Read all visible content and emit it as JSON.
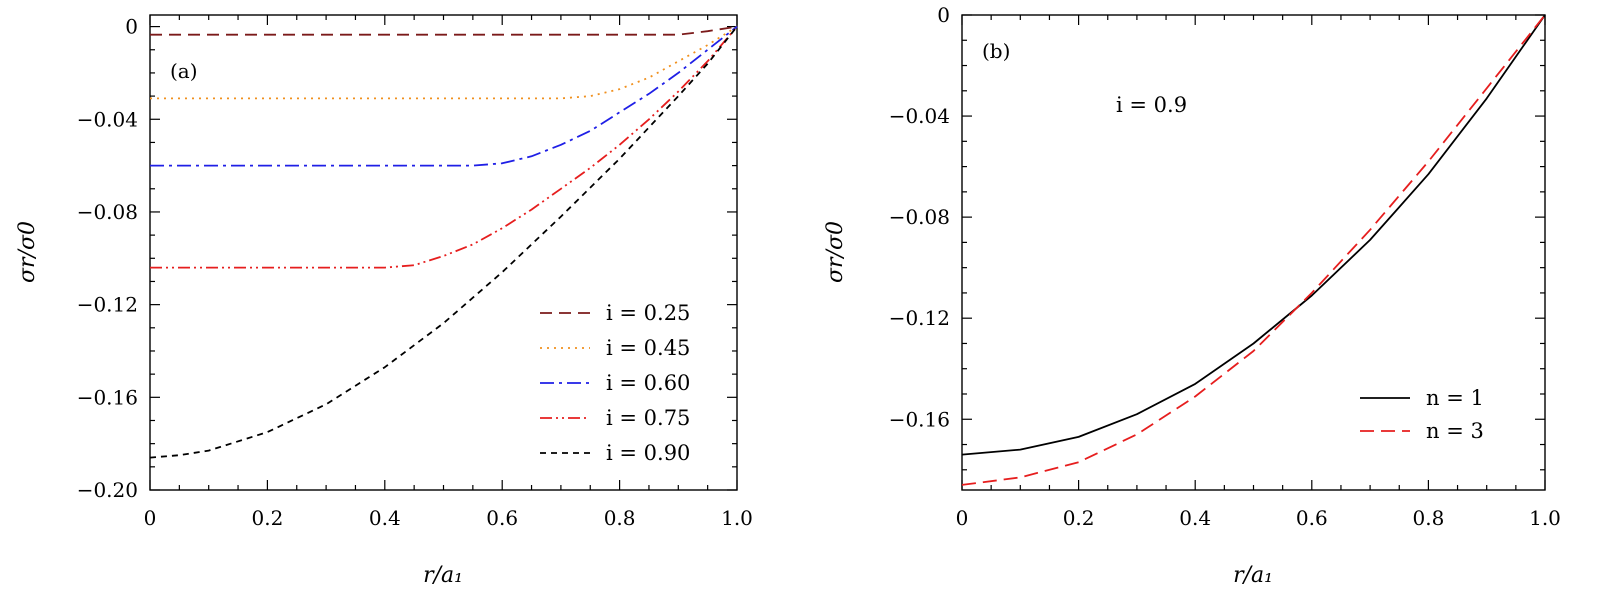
{
  "chart_data": [
    {
      "type": "line",
      "panel_label": "(a)",
      "xlabel": "r/a₁",
      "ylabel": "σr/σ0",
      "xlim": [
        0,
        1.0
      ],
      "ylim": [
        -0.2,
        0.005
      ],
      "xticks": [
        0,
        0.2,
        0.4,
        0.6,
        0.8,
        1.0
      ],
      "xtick_labels": [
        "0",
        "0.2",
        "0.4",
        "0.6",
        "0.8",
        "1.0"
      ],
      "yticks": [
        0,
        -0.04,
        -0.08,
        -0.12,
        -0.16,
        -0.2
      ],
      "ytick_labels": [
        "0",
        "−0.04",
        "−0.08",
        "−0.12",
        "−0.16",
        "−0.20"
      ],
      "legend_position": "lower-right",
      "series": [
        {
          "name": "i = 0.25",
          "color": "#7b1a1a",
          "dash": "12,7",
          "x": [
            0,
            0.2,
            0.4,
            0.6,
            0.8,
            0.9,
            0.95,
            1.0
          ],
          "y": [
            -0.0035,
            -0.0035,
            -0.0035,
            -0.0035,
            -0.0035,
            -0.0035,
            -0.002,
            0
          ]
        },
        {
          "name": "i = 0.45",
          "color": "#f0901e",
          "dash": "2,5",
          "x": [
            0,
            0.2,
            0.4,
            0.6,
            0.7,
            0.75,
            0.8,
            0.85,
            0.9,
            0.95,
            1.0
          ],
          "y": [
            -0.031,
            -0.031,
            -0.031,
            -0.031,
            -0.031,
            -0.03,
            -0.027,
            -0.022,
            -0.015,
            -0.008,
            0
          ]
        },
        {
          "name": "i = 0.60",
          "color": "#1f1fe6",
          "dash": "14,5,3,5",
          "x": [
            0,
            0.2,
            0.4,
            0.55,
            0.6,
            0.65,
            0.7,
            0.75,
            0.8,
            0.85,
            0.9,
            0.95,
            1.0
          ],
          "y": [
            -0.06,
            -0.06,
            -0.06,
            -0.06,
            -0.059,
            -0.056,
            -0.051,
            -0.045,
            -0.037,
            -0.029,
            -0.02,
            -0.01,
            0
          ]
        },
        {
          "name": "i = 0.75",
          "color": "#e61e1e",
          "dash": "12,4,2,4,2,4",
          "x": [
            0,
            0.2,
            0.4,
            0.45,
            0.5,
            0.55,
            0.6,
            0.65,
            0.7,
            0.75,
            0.8,
            0.85,
            0.9,
            0.95,
            1.0
          ],
          "y": [
            -0.104,
            -0.104,
            -0.104,
            -0.103,
            -0.099,
            -0.094,
            -0.087,
            -0.079,
            -0.07,
            -0.061,
            -0.051,
            -0.04,
            -0.028,
            -0.015,
            0
          ]
        },
        {
          "name": "i = 0.90",
          "color": "#000000",
          "dash": "6,5",
          "x": [
            0,
            0.05,
            0.1,
            0.2,
            0.3,
            0.4,
            0.5,
            0.6,
            0.7,
            0.8,
            0.9,
            0.95,
            1.0
          ],
          "y": [
            -0.186,
            -0.185,
            -0.183,
            -0.175,
            -0.163,
            -0.147,
            -0.128,
            -0.106,
            -0.082,
            -0.057,
            -0.03,
            -0.016,
            0
          ]
        }
      ]
    },
    {
      "type": "line",
      "panel_label": "(b)",
      "annotation": "i = 0.9",
      "xlabel": "r/a₁",
      "ylabel": "σr/σ0",
      "xlim": [
        0,
        1.0
      ],
      "ylim": [
        -0.188,
        0
      ],
      "xticks": [
        0,
        0.2,
        0.4,
        0.6,
        0.8,
        1.0
      ],
      "xtick_labels": [
        "0",
        "0.2",
        "0.4",
        "0.6",
        "0.8",
        "1.0"
      ],
      "yticks": [
        0,
        -0.04,
        -0.08,
        -0.12,
        -0.16
      ],
      "ytick_labels": [
        "0",
        "−0.04",
        "−0.08",
        "−0.12",
        "−0.16"
      ],
      "legend_position": "lower-right",
      "series": [
        {
          "name": "n = 1",
          "color": "#000000",
          "dash": "",
          "x": [
            0,
            0.1,
            0.2,
            0.3,
            0.4,
            0.5,
            0.6,
            0.7,
            0.8,
            0.9,
            1.0
          ],
          "y": [
            -0.174,
            -0.172,
            -0.167,
            -0.158,
            -0.146,
            -0.13,
            -0.111,
            -0.089,
            -0.063,
            -0.033,
            0
          ]
        },
        {
          "name": "n = 3",
          "color": "#e61e1e",
          "dash": "14,7",
          "x": [
            0,
            0.1,
            0.2,
            0.3,
            0.4,
            0.5,
            0.6,
            0.7,
            0.8,
            0.9,
            1.0
          ],
          "y": [
            -0.186,
            -0.183,
            -0.177,
            -0.166,
            -0.151,
            -0.133,
            -0.11,
            -0.085,
            -0.058,
            -0.029,
            0
          ]
        }
      ]
    }
  ]
}
